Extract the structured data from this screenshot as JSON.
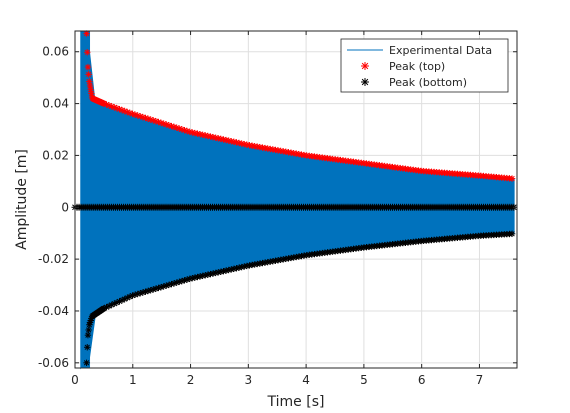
{
  "chart_data": {
    "type": "line",
    "title": "",
    "xlabel": "Time [s]",
    "ylabel": "Amplitude [m]",
    "xlim": [
      0,
      7.65
    ],
    "ylim": [
      -0.062,
      0.068
    ],
    "x_ticks": [
      0,
      1,
      2,
      3,
      4,
      5,
      6,
      7
    ],
    "x_tick_labels": [
      "0",
      "1",
      "2",
      "3",
      "4",
      "5",
      "6",
      "7"
    ],
    "y_ticks": [
      -0.06,
      -0.04,
      -0.02,
      0,
      0.02,
      0.04,
      0.06
    ],
    "y_tick_labels": [
      "-0.06",
      "-0.04",
      "-0.02",
      "0",
      "0.02",
      "0.04",
      "0.06"
    ],
    "grid": true,
    "legend_position": "top-right",
    "series": [
      {
        "name": "Experimental Data",
        "style": "filled oscillation envelope",
        "color": "#0072BD",
        "envelope_top": [
          [
            0.1,
            0.068
          ],
          [
            0.25,
            0.06
          ],
          [
            0.35,
            0.04
          ],
          [
            0.5,
            0.04
          ],
          [
            1,
            0.036
          ],
          [
            2,
            0.029
          ],
          [
            3,
            0.024
          ],
          [
            4,
            0.02
          ],
          [
            5,
            0.017
          ],
          [
            6,
            0.014
          ],
          [
            7,
            0.0122
          ],
          [
            7.6,
            0.011
          ]
        ],
        "envelope_bottom": [
          [
            0.1,
            -0.062
          ],
          [
            0.25,
            -0.058
          ],
          [
            0.35,
            -0.042
          ],
          [
            0.5,
            -0.039
          ],
          [
            1,
            -0.034
          ],
          [
            2,
            -0.0275
          ],
          [
            3,
            -0.0225
          ],
          [
            4,
            -0.0185
          ],
          [
            5,
            -0.0155
          ],
          [
            6,
            -0.013
          ],
          [
            7,
            -0.011
          ],
          [
            7.6,
            -0.0102
          ]
        ]
      },
      {
        "name": "Peak (top)",
        "marker": "*",
        "color": "#FF0000",
        "values": [
          [
            0.2,
            0.067
          ],
          [
            0.22,
            0.055
          ],
          [
            0.25,
            0.048
          ],
          [
            0.3,
            0.042
          ],
          [
            0.4,
            0.041
          ],
          [
            0.5,
            0.04
          ],
          [
            1,
            0.036
          ],
          [
            2,
            0.029
          ],
          [
            3,
            0.024
          ],
          [
            4,
            0.02
          ],
          [
            5,
            0.017
          ],
          [
            6,
            0.014
          ],
          [
            7,
            0.0122
          ],
          [
            7.6,
            0.011
          ]
        ]
      },
      {
        "name": "Peak (bottom)",
        "marker": "*",
        "color": "#000000",
        "values": [
          [
            0.0,
            0.0
          ],
          [
            7.6,
            0.0
          ],
          [
            0.2,
            -0.06
          ],
          [
            0.22,
            -0.05
          ],
          [
            0.25,
            -0.045
          ],
          [
            0.3,
            -0.042
          ],
          [
            0.5,
            -0.039
          ],
          [
            1,
            -0.034
          ],
          [
            2,
            -0.0275
          ],
          [
            3,
            -0.0225
          ],
          [
            4,
            -0.0185
          ],
          [
            5,
            -0.0155
          ],
          [
            6,
            -0.013
          ],
          [
            7,
            -0.011
          ],
          [
            7.6,
            -0.0102
          ]
        ]
      }
    ]
  }
}
